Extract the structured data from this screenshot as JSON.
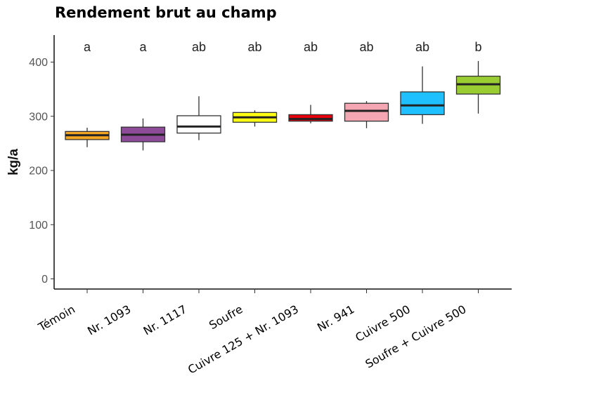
{
  "chart_data": {
    "type": "box",
    "title": "Rendement brut au champ",
    "xlabel": "",
    "ylabel": "kg/a",
    "ylim": [
      -20,
      440
    ],
    "yticks": [
      0,
      100,
      200,
      300,
      400
    ],
    "grid": false,
    "legend": "none",
    "categories": [
      "Témoin",
      "Nr. 1093",
      "Nr. 1117",
      "Soufre",
      "Cuivre 125 + Nr. 1093",
      "Nr. 941",
      "Cuivre 500",
      "Soufre + Cuivre 500"
    ],
    "significance_letters": [
      "a",
      "a",
      "ab",
      "ab",
      "ab",
      "ab",
      "ab",
      "b"
    ],
    "colors": [
      "#f5a623",
      "#8e4b9a",
      "#ffffff",
      "#ffff14",
      "#e8000b",
      "#f4a6b2",
      "#1ec0ff",
      "#9acd32"
    ],
    "boxes": [
      {
        "min": 243,
        "q1": 257,
        "median": 265,
        "q3": 272,
        "max": 279
      },
      {
        "min": 237,
        "q1": 253,
        "median": 266,
        "q3": 280,
        "max": 296
      },
      {
        "min": 256,
        "q1": 269,
        "median": 281,
        "q3": 301,
        "max": 337
      },
      {
        "min": 281,
        "q1": 289,
        "median": 298,
        "q3": 307,
        "max": 311
      },
      {
        "min": 287,
        "q1": 291,
        "median": 295,
        "q3": 303,
        "max": 321
      },
      {
        "min": 278,
        "q1": 291,
        "median": 310,
        "q3": 324,
        "max": 328
      },
      {
        "min": 286,
        "q1": 303,
        "median": 320,
        "q3": 345,
        "max": 392
      },
      {
        "min": 305,
        "q1": 341,
        "median": 359,
        "q3": 374,
        "max": 402
      }
    ]
  }
}
